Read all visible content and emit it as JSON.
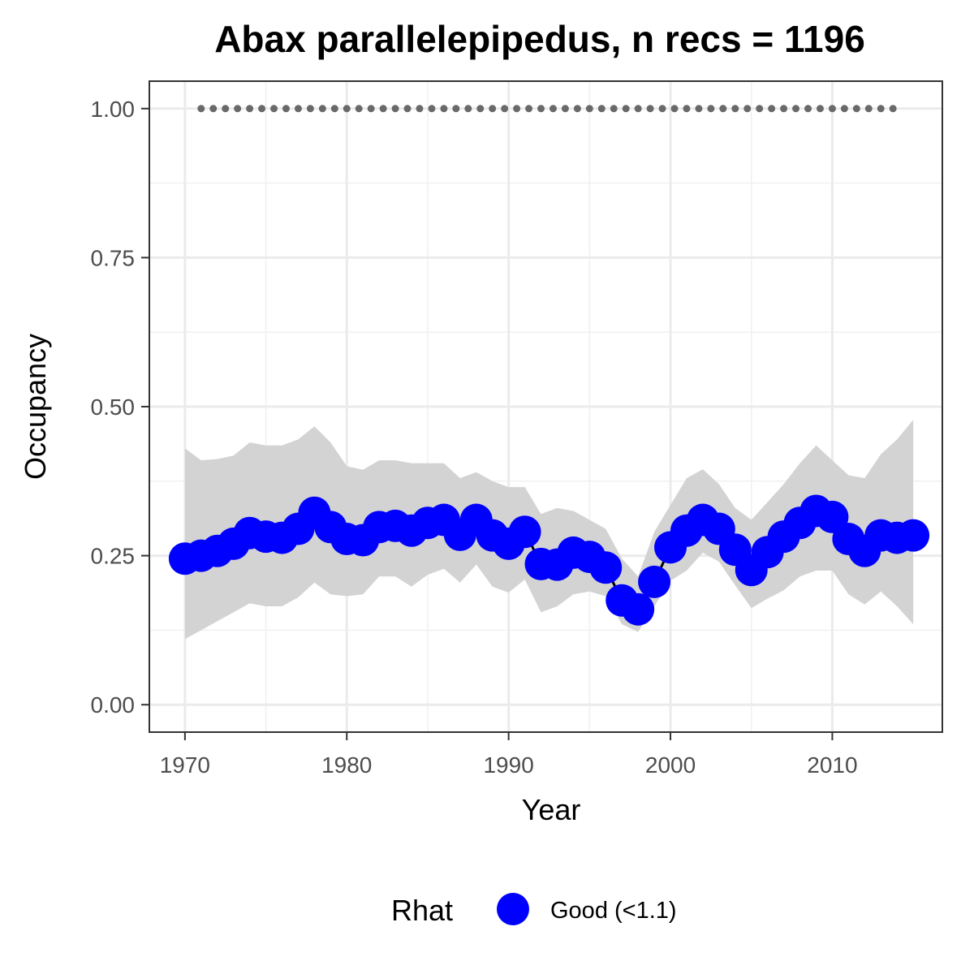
{
  "chart_data": {
    "type": "line",
    "title": "Abax parallelepipedus, n recs = 1196",
    "xlabel": "Year",
    "ylabel": "Occupancy",
    "xlim": [
      1967.8,
      2016.8
    ],
    "ylim": [
      -0.046,
      1.046
    ],
    "x_ticks": [
      1970,
      1980,
      1990,
      2000,
      2010
    ],
    "x_tick_labels": [
      "1970",
      "1980",
      "1990",
      "2000",
      "2010"
    ],
    "y_ticks": [
      0.0,
      0.25,
      0.5,
      0.75,
      1.0
    ],
    "y_tick_labels": [
      "0.00",
      "0.25",
      "0.50",
      "0.75",
      "1.00"
    ],
    "grid": true,
    "x": [
      1970,
      1971,
      1972,
      1973,
      1974,
      1975,
      1976,
      1977,
      1978,
      1979,
      1980,
      1981,
      1982,
      1983,
      1984,
      1985,
      1986,
      1987,
      1988,
      1989,
      1990,
      1991,
      1992,
      1993,
      1994,
      1995,
      1996,
      1997,
      1998,
      1999,
      2000,
      2001,
      2002,
      2003,
      2004,
      2005,
      2006,
      2007,
      2008,
      2009,
      2010,
      2011,
      2012,
      2013,
      2014,
      2015
    ],
    "series": [
      {
        "name": "Occupancy (mean)",
        "color": "#0000ff",
        "line_color": "#000000",
        "values": [
          0.245,
          0.25,
          0.258,
          0.27,
          0.288,
          0.282,
          0.28,
          0.295,
          0.322,
          0.298,
          0.278,
          0.276,
          0.298,
          0.3,
          0.292,
          0.305,
          0.31,
          0.285,
          0.31,
          0.284,
          0.27,
          0.29,
          0.236,
          0.235,
          0.255,
          0.248,
          0.23,
          0.175,
          0.16,
          0.206,
          0.264,
          0.292,
          0.31,
          0.295,
          0.26,
          0.226,
          0.256,
          0.282,
          0.305,
          0.325,
          0.315,
          0.278,
          0.258,
          0.284,
          0.28,
          0.284
        ]
      },
      {
        "name": "95% credible interval",
        "color": "#d3d3d3",
        "upper": [
          0.43,
          0.41,
          0.412,
          0.418,
          0.44,
          0.435,
          0.435,
          0.445,
          0.467,
          0.44,
          0.4,
          0.394,
          0.41,
          0.41,
          0.405,
          0.405,
          0.405,
          0.38,
          0.39,
          0.375,
          0.365,
          0.365,
          0.32,
          0.33,
          0.325,
          0.31,
          0.295,
          0.245,
          0.215,
          0.29,
          0.335,
          0.38,
          0.395,
          0.37,
          0.33,
          0.31,
          0.34,
          0.37,
          0.405,
          0.435,
          0.41,
          0.385,
          0.38,
          0.42,
          0.445,
          0.478
        ],
        "lower": [
          0.11,
          0.125,
          0.14,
          0.155,
          0.17,
          0.165,
          0.165,
          0.18,
          0.205,
          0.185,
          0.182,
          0.185,
          0.215,
          0.215,
          0.198,
          0.218,
          0.228,
          0.205,
          0.235,
          0.198,
          0.188,
          0.21,
          0.155,
          0.165,
          0.185,
          0.19,
          0.182,
          0.135,
          0.122,
          0.165,
          0.208,
          0.225,
          0.255,
          0.24,
          0.2,
          0.162,
          0.178,
          0.192,
          0.215,
          0.225,
          0.225,
          0.185,
          0.168,
          0.19,
          0.165,
          0.135
        ]
      },
      {
        "name": "Reference (dotted)",
        "color": "#696969",
        "x_start": 1971,
        "x_end": 2014,
        "x_step": 0.75,
        "value": 1.0
      }
    ],
    "legend": {
      "title": "Rhat",
      "items": [
        {
          "label": "Good (<1.1)",
          "color": "#0000ff"
        }
      ],
      "position": "bottom"
    }
  }
}
